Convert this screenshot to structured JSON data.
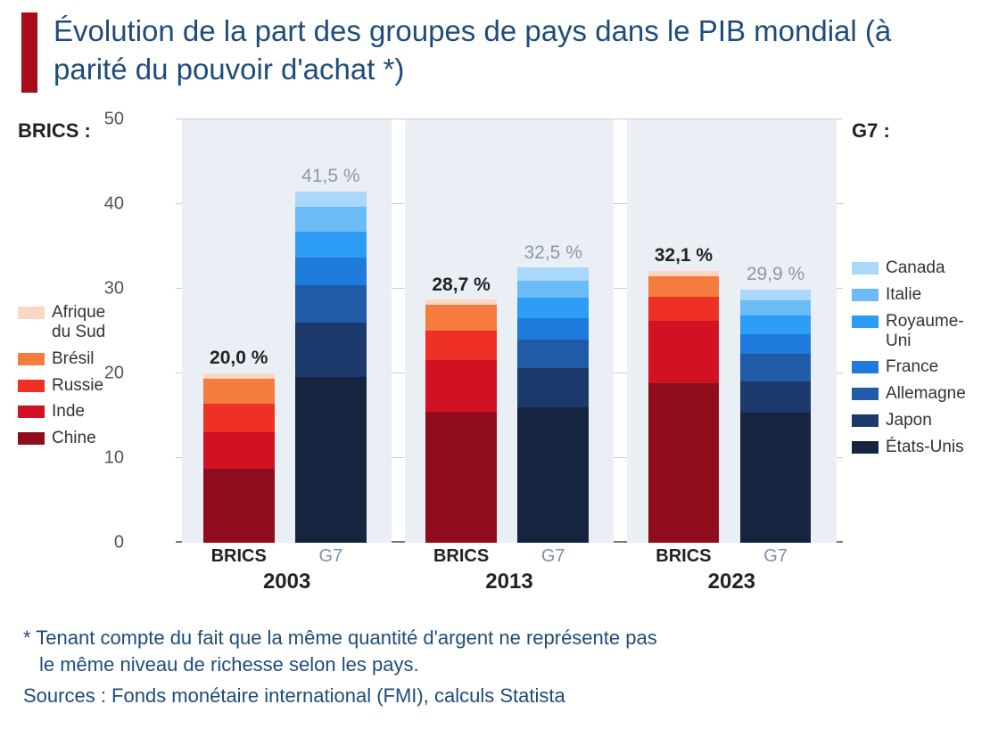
{
  "title": "Évolution de la part des groupes de pays dans le PIB mondial (à parité du pouvoir d'achat *)",
  "title_color": "#1f4c7a",
  "title_bar_color": "#a70c1c",
  "chart": {
    "type": "stacked-bar",
    "ylim": [
      0,
      50
    ],
    "ytick_step": 10,
    "grid_color": "#cccccc",
    "zone_bg": "#eaeff5",
    "tick_color": "#555555",
    "years": [
      "2003",
      "2013",
      "2023"
    ],
    "groups": {
      "brics": {
        "heading": "BRICS :",
        "cat_label": "BRICS",
        "cat_label_color": "#222222",
        "cat_label_weight": "700",
        "total_color": "#222222",
        "total_weight": "700",
        "series": [
          {
            "name": "Chine",
            "color": "#8e0c1c"
          },
          {
            "name": "Inde",
            "color": "#d01223"
          },
          {
            "name": "Russie",
            "color": "#ee3124"
          },
          {
            "name": "Brésil",
            "color": "#f47c3c"
          },
          {
            "name": "Afrique du Sud",
            "color": "#fcd6c0"
          }
        ]
      },
      "g7": {
        "heading": "G7 :",
        "cat_label": "G7",
        "cat_label_color": "#7893ae",
        "cat_label_weight": "400",
        "total_color": "#8a99a8",
        "total_weight": "400",
        "series": [
          {
            "name": "États-Unis",
            "color": "#16253f"
          },
          {
            "name": "Japon",
            "color": "#1b3a6b"
          },
          {
            "name": "Allemagne",
            "color": "#1f5ba6"
          },
          {
            "name": "France",
            "color": "#1e7bdc"
          },
          {
            "name": "Royaume-Uni",
            "color": "#2d9cf4"
          },
          {
            "name": "Italie",
            "color": "#6bbcf6"
          },
          {
            "name": "Canada",
            "color": "#a9d8fa"
          }
        ]
      }
    },
    "data": [
      {
        "year": "2003",
        "brics": {
          "total_label": "20,0 %",
          "values": [
            8.7,
            4.4,
            3.3,
            3.0,
            0.6
          ]
        },
        "g7": {
          "total_label": "41,5 %",
          "values": [
            19.6,
            6.4,
            4.4,
            3.3,
            3.0,
            3.0,
            1.8
          ]
        }
      },
      {
        "year": "2013",
        "brics": {
          "total_label": "28,7 %",
          "values": [
            15.5,
            6.1,
            3.5,
            3.0,
            0.6
          ]
        },
        "g7": {
          "total_label": "32,5 %",
          "values": [
            16.0,
            4.6,
            3.4,
            2.5,
            2.4,
            2.1,
            1.5
          ]
        }
      },
      {
        "year": "2023",
        "brics": {
          "total_label": "32,1 %",
          "values": [
            18.8,
            7.4,
            2.9,
            2.4,
            0.6
          ]
        },
        "g7": {
          "total_label": "29,9 %",
          "values": [
            15.4,
            3.7,
            3.2,
            2.3,
            2.2,
            1.8,
            1.3
          ]
        }
      }
    ]
  },
  "footnote_line1": "* Tenant compte du fait que la même quantité d'argent ne représente pas",
  "footnote_line2": "le même niveau de richesse selon les pays.",
  "sources": "Sources : Fonds monétaire international (FMI), calculs Statista",
  "footnote_color": "#1f4c7a"
}
